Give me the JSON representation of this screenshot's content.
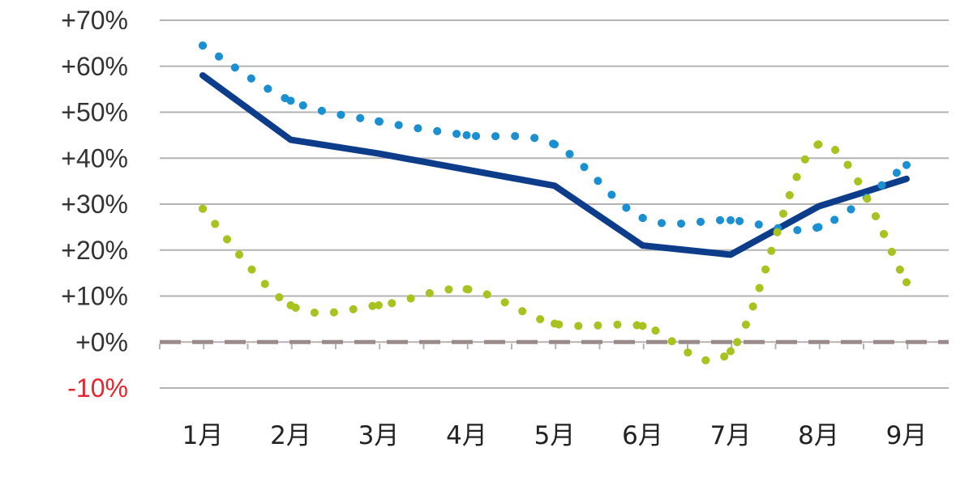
{
  "chart_data": {
    "type": "line",
    "title": "",
    "xlabel": "",
    "ylabel": "",
    "categories": [
      "1月",
      "2月",
      "3月",
      "4月",
      "5月",
      "6月",
      "7月",
      "8月",
      "9月"
    ],
    "ylim": [
      -10,
      70
    ],
    "yticks": [
      {
        "value": 70,
        "label": "+70%"
      },
      {
        "value": 60,
        "label": "+60%"
      },
      {
        "value": 50,
        "label": "+50%"
      },
      {
        "value": 40,
        "label": "+40%"
      },
      {
        "value": 30,
        "label": "+30%"
      },
      {
        "value": 20,
        "label": "+20%"
      },
      {
        "value": 10,
        "label": "+10%"
      },
      {
        "value": 0,
        "label": "+0%"
      },
      {
        "value": -10,
        "label": "-10%"
      }
    ],
    "grid": true,
    "legend": "none",
    "series": [
      {
        "style": "solid",
        "color": "#0d3d8a",
        "values": [
          58,
          44,
          41,
          37.5,
          34,
          21,
          19,
          29.5,
          35.5
        ]
      },
      {
        "style": "dotted",
        "color": "#1a8fd1",
        "values": [
          64.5,
          52.5,
          48,
          45,
          43,
          27,
          26.5,
          25,
          38.5
        ]
      },
      {
        "style": "dotted",
        "color": "#a8c220",
        "values": [
          29,
          8,
          8,
          11.5,
          4,
          3.5,
          -2,
          43,
          13
        ]
      }
    ],
    "zero_line": {
      "value": 0,
      "color": "#9a8a8a",
      "style": "dashed"
    },
    "colors": {
      "grid": "#b4b4b4",
      "tick_label": "#333333",
      "negative_tick_label": "#e8242e"
    }
  }
}
